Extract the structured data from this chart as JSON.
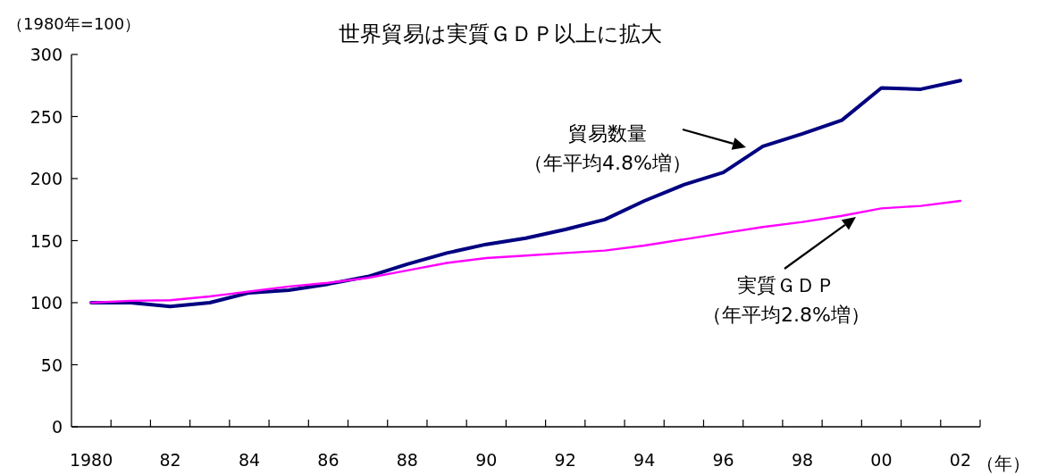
{
  "chart_data": {
    "type": "line",
    "title": "世界貿易は実質ＧＤＰ以上に拡大",
    "ylabel": "（1980年=100）",
    "xlabel": "（年）",
    "categories": [
      "1980",
      null,
      "82",
      null,
      "84",
      null,
      "86",
      null,
      "88",
      null,
      "90",
      null,
      "92",
      null,
      "94",
      null,
      "96",
      null,
      "98",
      null,
      "00",
      null,
      "02"
    ],
    "series": [
      {
        "name": "貿易数量",
        "color": "#000080",
        "values": [
          100,
          100,
          97,
          100,
          108,
          110,
          115,
          121,
          131,
          140,
          147,
          152,
          159,
          167,
          182,
          195,
          205,
          226,
          236,
          247,
          273,
          272,
          279
        ]
      },
      {
        "name": "実質ＧＤＰ",
        "color": "#ff00ff",
        "values": [
          100,
          101.5,
          102,
          105,
          109,
          113,
          116,
          120,
          126,
          132,
          136,
          138,
          140,
          142,
          146,
          151,
          156,
          161,
          165,
          170,
          176,
          178,
          182
        ]
      }
    ],
    "annotations": [
      "（年平均4.8%増）",
      "（年平均2.8%増）"
    ],
    "ylim": [
      0,
      300
    ],
    "yticks": [
      0,
      50,
      100,
      150,
      200,
      250,
      300
    ],
    "grid": false,
    "legend": false,
    "marker": "none",
    "line_style": "solid"
  }
}
